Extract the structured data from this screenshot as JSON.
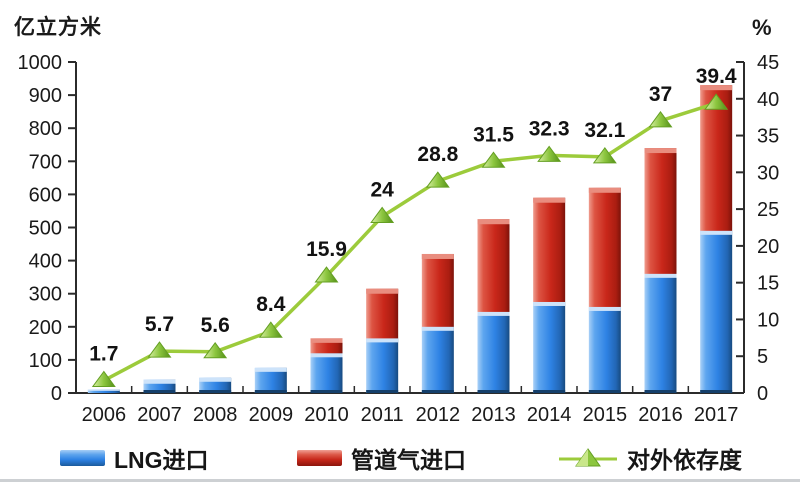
{
  "chart_data": {
    "type": "bar",
    "subtype": "stacked-bars-with-line-overlay",
    "title": "",
    "categories": [
      "2006",
      "2007",
      "2008",
      "2009",
      "2010",
      "2011",
      "2012",
      "2013",
      "2014",
      "2015",
      "2016",
      "2017"
    ],
    "series": [
      {
        "name": "LNG进口",
        "type": "bar",
        "axis": "left",
        "color": "#2e82e4",
        "values": [
          10,
          40,
          46,
          76,
          120,
          165,
          200,
          245,
          275,
          260,
          360,
          490
        ]
      },
      {
        "name": "管道气进口",
        "type": "bar",
        "axis": "left",
        "color": "#c9271a",
        "values": [
          0,
          0,
          0,
          0,
          45,
          150,
          220,
          280,
          315,
          360,
          380,
          440
        ]
      },
      {
        "name": "对外依存度",
        "type": "line",
        "axis": "right",
        "color": "#9ccb3b",
        "marker": "triangle",
        "marker_color": "#8cc63f",
        "values": [
          1.7,
          5.7,
          5.6,
          8.4,
          15.9,
          24,
          28.8,
          31.5,
          32.3,
          32.1,
          37,
          39.4
        ],
        "labels": [
          "1.7",
          "5.7",
          "5.6",
          "8.4",
          "15.9",
          "24",
          "28.8",
          "31.5",
          "32.3",
          "32.1",
          "37",
          "39.4"
        ]
      }
    ],
    "left_axis": {
      "unit": "亿立方米",
      "min": 0,
      "max": 1000,
      "step": 100,
      "ticks": [
        0,
        100,
        200,
        300,
        400,
        500,
        600,
        700,
        800,
        900,
        1000
      ]
    },
    "right_axis": {
      "unit": "%",
      "min": 0,
      "max": 45,
      "step": 5,
      "ticks": [
        0,
        5,
        10,
        15,
        20,
        25,
        30,
        35,
        40,
        45
      ]
    },
    "grid": false,
    "legend_position": "bottom",
    "axis_color": "#2b2b2b",
    "background": "#ffffff"
  }
}
